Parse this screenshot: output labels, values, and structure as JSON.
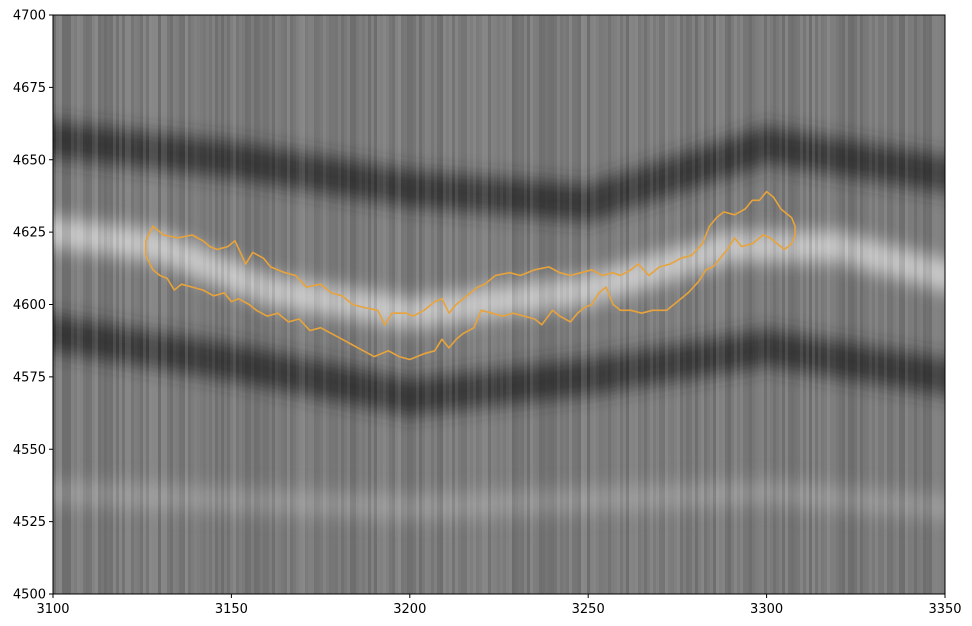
{
  "chart_data": {
    "type": "heatmap",
    "title": "",
    "xlabel": "",
    "ylabel": "",
    "xlim": [
      3100,
      3350
    ],
    "ylim": [
      4500,
      4700
    ],
    "x_ticks": [
      "3100",
      "3150",
      "3200",
      "3250",
      "3300",
      "3350"
    ],
    "y_ticks": [
      "4500",
      "4525",
      "4550",
      "4575",
      "4600",
      "4625",
      "4650",
      "4675",
      "4700"
    ],
    "colormap": "grayscale",
    "grid": false,
    "background_bands": [
      {
        "center": [
          [
            3100,
            4657
          ],
          [
            3150,
            4650
          ],
          [
            3200,
            4640
          ],
          [
            3250,
            4635
          ],
          [
            3300,
            4655
          ],
          [
            3350,
            4645
          ]
        ],
        "tone": "dark"
      },
      {
        "center": [
          [
            3100,
            4625
          ],
          [
            3130,
            4620
          ],
          [
            3160,
            4605
          ],
          [
            3200,
            4597
          ],
          [
            3250,
            4605
          ],
          [
            3290,
            4620
          ],
          [
            3320,
            4620
          ],
          [
            3350,
            4610
          ]
        ],
        "tone": "bright"
      },
      {
        "center": [
          [
            3100,
            4590
          ],
          [
            3150,
            4580
          ],
          [
            3200,
            4568
          ],
          [
            3250,
            4575
          ],
          [
            3300,
            4585
          ],
          [
            3350,
            4575
          ]
        ],
        "tone": "dark"
      },
      {
        "center": [
          [
            3100,
            4535
          ],
          [
            3200,
            4530
          ],
          [
            3300,
            4535
          ],
          [
            3350,
            4530
          ]
        ],
        "tone": "mid"
      }
    ],
    "contour": {
      "color": "#e8a33a",
      "upper": [
        [
          3126,
          4622
        ],
        [
          3128,
          4627
        ],
        [
          3131,
          4624
        ],
        [
          3135,
          4623
        ],
        [
          3139,
          4624
        ],
        [
          3142,
          4622
        ],
        [
          3144,
          4620
        ],
        [
          3146,
          4619
        ],
        [
          3149,
          4620
        ],
        [
          3151,
          4622
        ],
        [
          3154,
          4614
        ],
        [
          3156,
          4618
        ],
        [
          3159,
          4616
        ],
        [
          3161,
          4613
        ],
        [
          3165,
          4611
        ],
        [
          3168,
          4610
        ],
        [
          3171,
          4606
        ],
        [
          3175,
          4607
        ],
        [
          3178,
          4604
        ],
        [
          3181,
          4603
        ],
        [
          3184,
          4600
        ],
        [
          3187,
          4599
        ],
        [
          3191,
          4598
        ],
        [
          3193,
          4593
        ],
        [
          3195,
          4597
        ],
        [
          3199,
          4597
        ],
        [
          3201,
          4596
        ],
        [
          3204,
          4598
        ],
        [
          3207,
          4601
        ],
        [
          3209,
          4602
        ],
        [
          3211,
          4597
        ],
        [
          3213,
          4600
        ],
        [
          3216,
          4603
        ],
        [
          3219,
          4606
        ],
        [
          3221,
          4607
        ],
        [
          3224,
          4610
        ],
        [
          3228,
          4611
        ],
        [
          3231,
          4610
        ],
        [
          3235,
          4612
        ],
        [
          3239,
          4613
        ],
        [
          3242,
          4611
        ],
        [
          3245,
          4610
        ],
        [
          3248,
          4611
        ],
        [
          3251,
          4612
        ],
        [
          3254,
          4610
        ],
        [
          3257,
          4611
        ],
        [
          3259,
          4610
        ],
        [
          3262,
          4612
        ],
        [
          3264,
          4614
        ],
        [
          3267,
          4610
        ],
        [
          3270,
          4613
        ],
        [
          3273,
          4614
        ],
        [
          3276,
          4616
        ],
        [
          3279,
          4617
        ],
        [
          3282,
          4621
        ],
        [
          3284,
          4627
        ],
        [
          3286,
          4630
        ],
        [
          3288,
          4632
        ],
        [
          3291,
          4631
        ],
        [
          3294,
          4633
        ],
        [
          3296,
          4636
        ],
        [
          3298,
          4636
        ],
        [
          3300,
          4639
        ],
        [
          3302,
          4637
        ],
        [
          3304,
          4633
        ],
        [
          3306,
          4631
        ],
        [
          3307,
          4630
        ],
        [
          3308,
          4627
        ]
      ],
      "lower": [
        [
          3308,
          4624
        ],
        [
          3307,
          4621
        ],
        [
          3305,
          4619
        ],
        [
          3303,
          4621
        ],
        [
          3301,
          4623
        ],
        [
          3299,
          4624
        ],
        [
          3296,
          4621
        ],
        [
          3293,
          4620
        ],
        [
          3291,
          4623
        ],
        [
          3289,
          4619
        ],
        [
          3287,
          4616
        ],
        [
          3285,
          4613
        ],
        [
          3283,
          4612
        ],
        [
          3281,
          4608
        ],
        [
          3278,
          4604
        ],
        [
          3275,
          4601
        ],
        [
          3272,
          4598
        ],
        [
          3268,
          4598
        ],
        [
          3265,
          4597
        ],
        [
          3262,
          4598
        ],
        [
          3259,
          4598
        ],
        [
          3257,
          4600
        ],
        [
          3255,
          4606
        ],
        [
          3253,
          4604
        ],
        [
          3251,
          4600
        ],
        [
          3249,
          4599
        ],
        [
          3247,
          4597
        ],
        [
          3245,
          4594
        ],
        [
          3242,
          4596
        ],
        [
          3240,
          4598
        ],
        [
          3237,
          4593
        ],
        [
          3235,
          4595
        ],
        [
          3232,
          4596
        ],
        [
          3229,
          4597
        ],
        [
          3226,
          4596
        ],
        [
          3223,
          4597
        ],
        [
          3220,
          4598
        ],
        [
          3218,
          4592
        ],
        [
          3215,
          4590
        ],
        [
          3213,
          4588
        ],
        [
          3211,
          4585
        ],
        [
          3209,
          4588
        ],
        [
          3207,
          4584
        ],
        [
          3204,
          4583
        ],
        [
          3200,
          4581
        ],
        [
          3197,
          4582
        ],
        [
          3194,
          4584
        ],
        [
          3190,
          4582
        ],
        [
          3187,
          4584
        ],
        [
          3184,
          4586
        ],
        [
          3181,
          4588
        ],
        [
          3178,
          4590
        ],
        [
          3175,
          4592
        ],
        [
          3172,
          4591
        ],
        [
          3169,
          4595
        ],
        [
          3166,
          4594
        ],
        [
          3163,
          4597
        ],
        [
          3160,
          4596
        ],
        [
          3157,
          4598
        ],
        [
          3155,
          4600
        ],
        [
          3152,
          4602
        ],
        [
          3150,
          4601
        ],
        [
          3148,
          4604
        ],
        [
          3145,
          4603
        ],
        [
          3142,
          4605
        ],
        [
          3139,
          4606
        ],
        [
          3136,
          4607
        ],
        [
          3134,
          4605
        ],
        [
          3132,
          4609
        ],
        [
          3130,
          4610
        ],
        [
          3128,
          4612
        ],
        [
          3126,
          4617
        ],
        [
          3126,
          4622
        ]
      ]
    }
  }
}
